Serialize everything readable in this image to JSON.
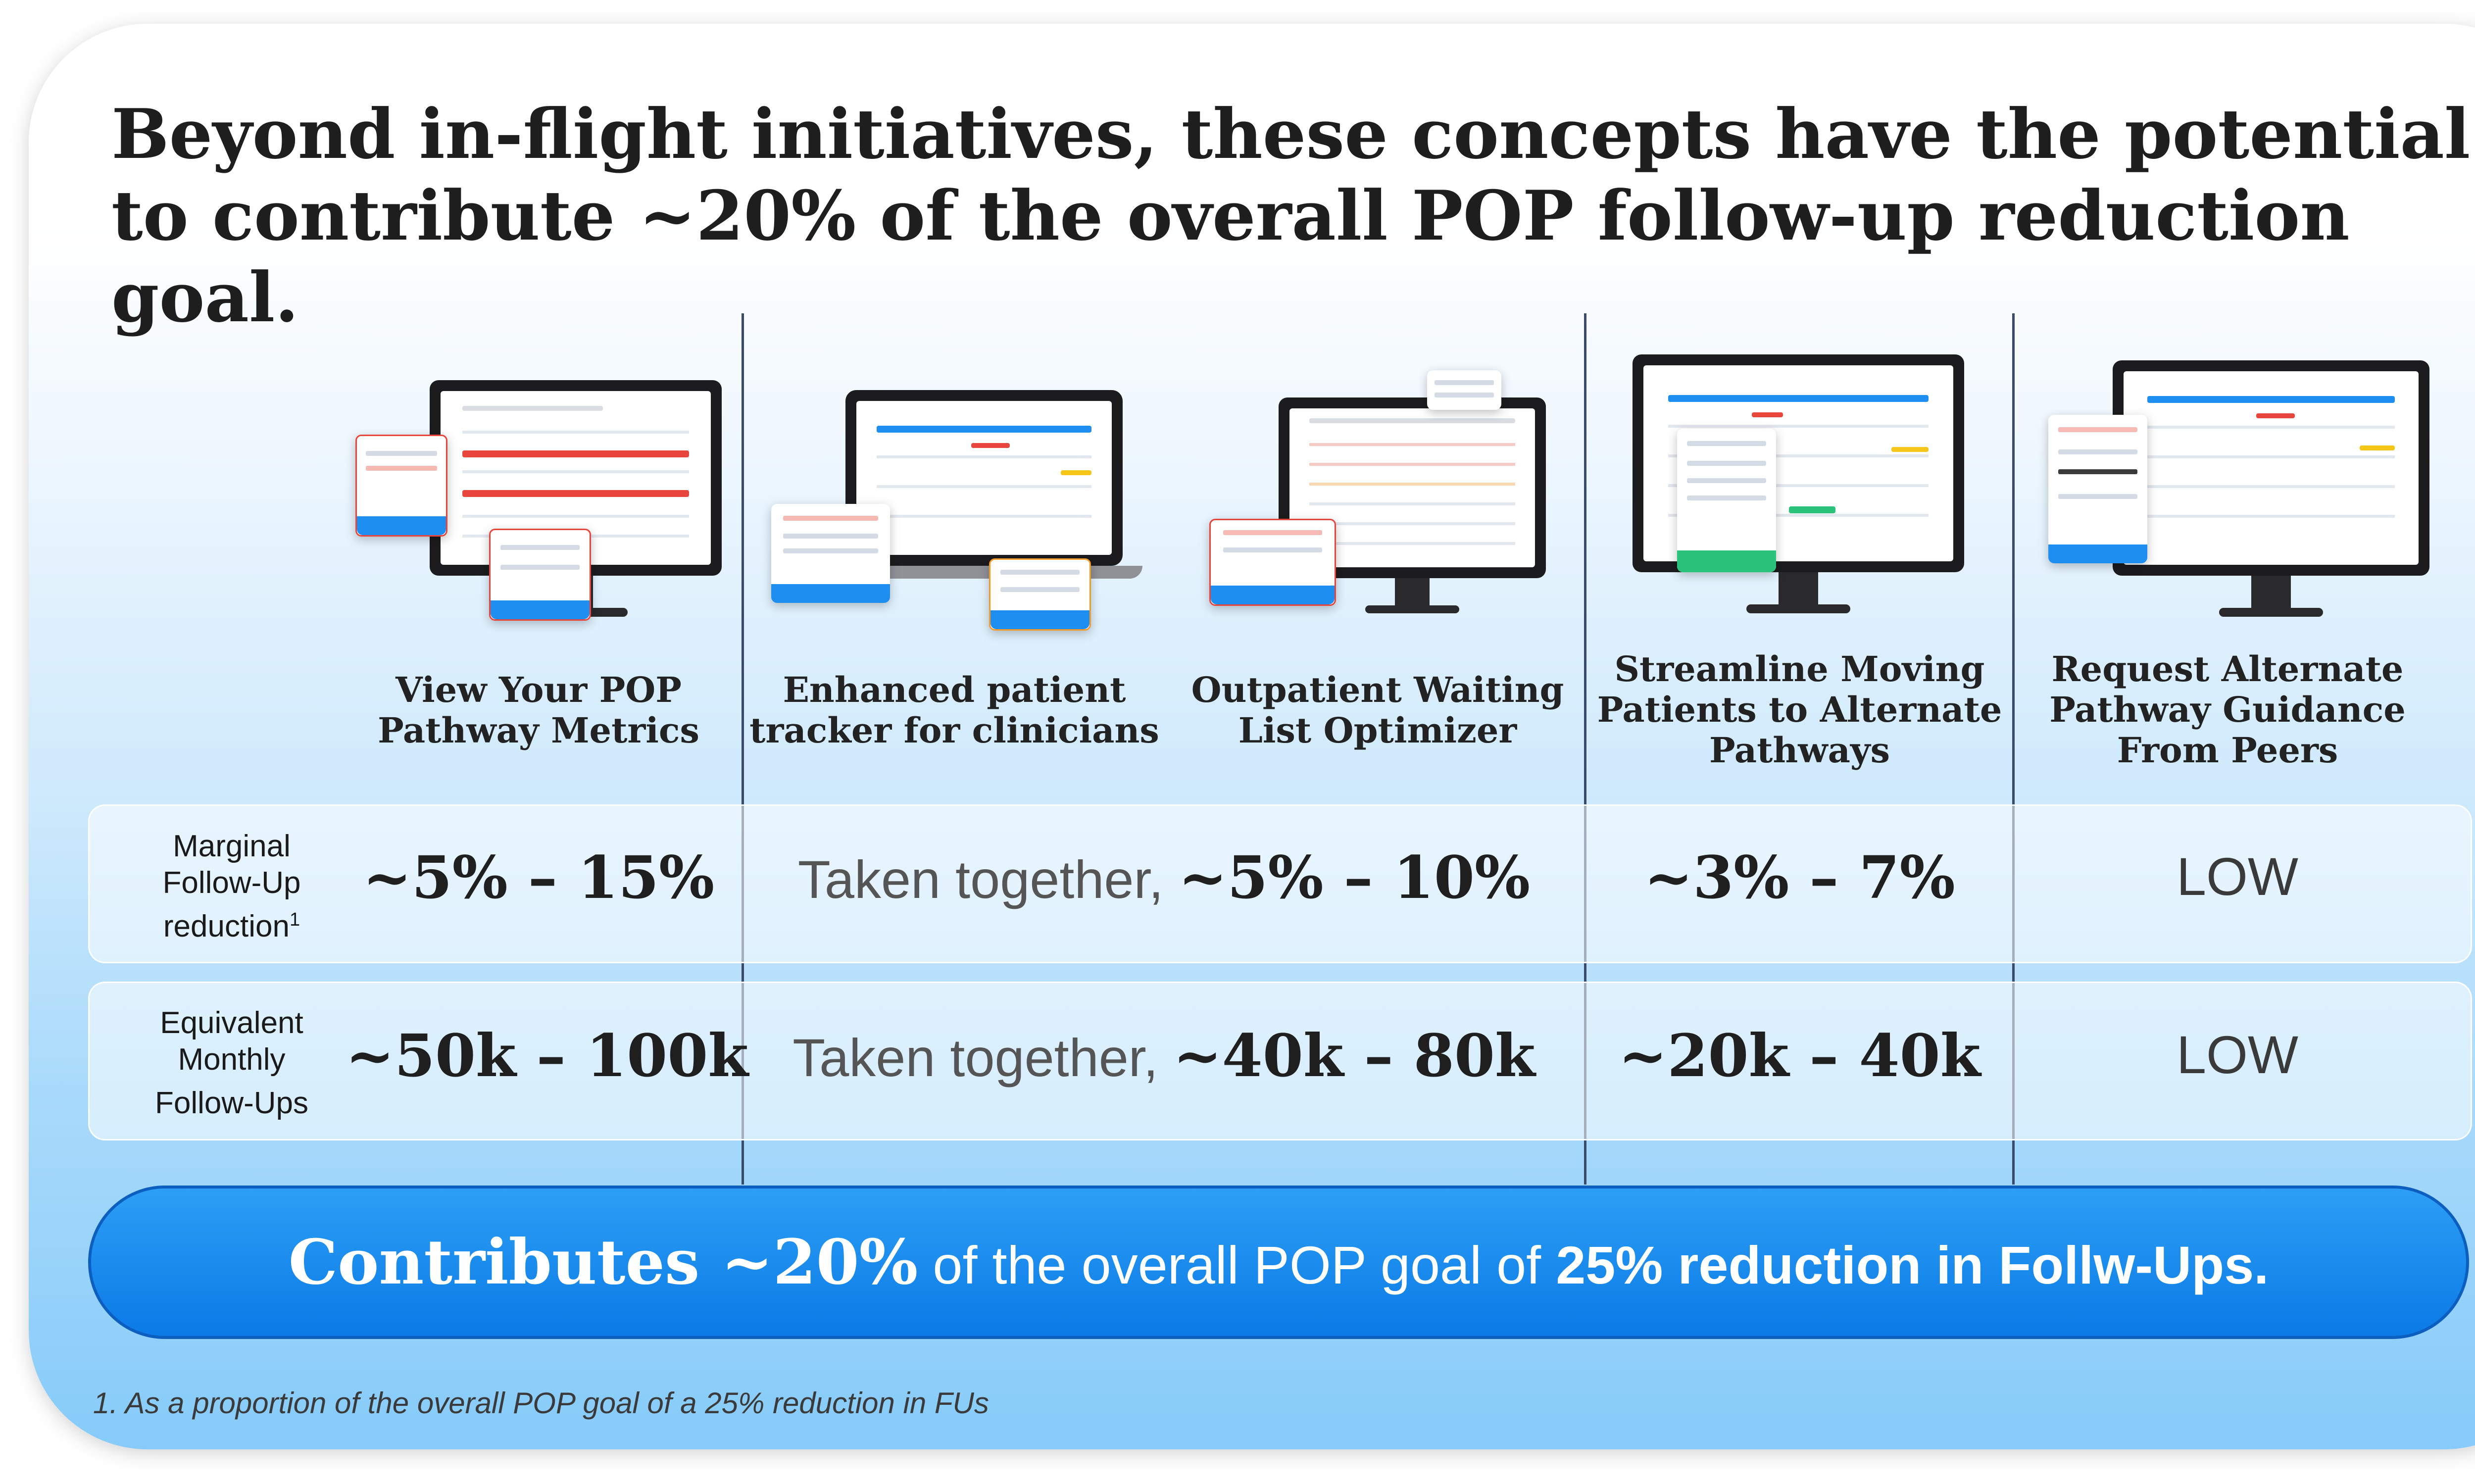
{
  "title": "Beyond in-flight initiatives, these concepts have the potential to contribute ~20% of the overall POP follow-up reduction goal.",
  "columns": [
    {
      "title_line1": "View Your POP",
      "title_line2": "Pathway Metrics",
      "title_line3": ""
    },
    {
      "title_line1": "Enhanced patient",
      "title_line2": "tracker for clinicians",
      "title_line3": ""
    },
    {
      "title_line1": "Outpatient Waiting",
      "title_line2": "List Optimizer",
      "title_line3": ""
    },
    {
      "title_line1": "Streamline Moving",
      "title_line2": "Patients to Alternate",
      "title_line3": "Pathways"
    },
    {
      "title_line1": "Request Alternate",
      "title_line2": "Pathway Guidance",
      "title_line3": "From Peers"
    }
  ],
  "rows": [
    {
      "label_line1": "Marginal",
      "label_line2": "Follow-Up",
      "label_line3": "reduction",
      "label_sup": "1",
      "col1": "~5% – 15%",
      "together_lead": "Taken together,",
      "together_value": "~5% – 10%",
      "col4": "~3% – 7%",
      "col5": "LOW"
    },
    {
      "label_line1": "Equivalent",
      "label_line2": "Monthly",
      "label_line3": "Follow-Ups",
      "label_sup": "",
      "col1": "~50k – 100k",
      "together_lead": "Taken together,",
      "together_value": "~40k – 80k",
      "col4": "~20k – 40k",
      "col5": "LOW"
    }
  ],
  "banner": {
    "part1": "Contributes ~20%",
    "part2": " of the overall POP goal of ",
    "part3": "25% reduction in Follw-Ups."
  },
  "footnote": "1. As a proportion of the overall POP goal of a 25% reduction in FUs",
  "colors": {
    "banner_blue": "#0b7ae6",
    "accent_red": "#e8453c",
    "accent_orange": "#f39a2b",
    "accent_yellow": "#f5c518",
    "accent_green": "#2bc37a",
    "ui_blue": "#1e8ef0"
  }
}
